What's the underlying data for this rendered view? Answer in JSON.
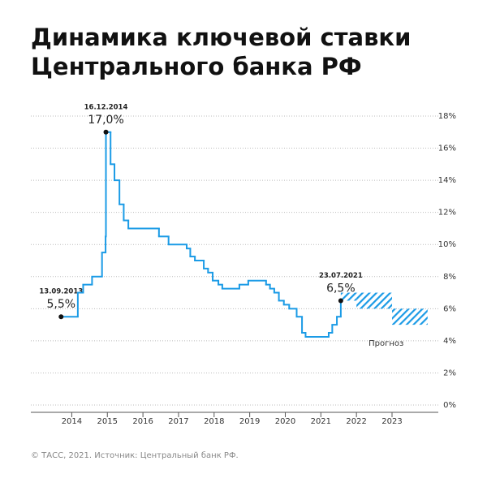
{
  "chart_data": {
    "type": "step",
    "title": [
      "Динамика ключевой ставки",
      "Центрального банка РФ"
    ],
    "source": "© ТАСС, 2021. Источник: Центральный банк РФ.",
    "x": [
      2013.7,
      2014.17,
      2014.32,
      2014.57,
      2014.85,
      2014.95,
      2014.96,
      2015.09,
      2015.2,
      2015.34,
      2015.46,
      2015.59,
      2016.45,
      2016.72,
      2017.23,
      2017.33,
      2017.46,
      2017.71,
      2017.83,
      2017.96,
      2018.12,
      2018.23,
      2018.71,
      2018.96,
      2019.46,
      2019.57,
      2019.69,
      2019.82,
      2019.96,
      2020.11,
      2020.32,
      2020.47,
      2020.57,
      2021.22,
      2021.32,
      2021.45,
      2021.56
    ],
    "series": [
      {
        "color": "#1b9be6",
        "values": [
          5.5,
          7,
          7.5,
          8,
          9.5,
          10.5,
          17,
          15,
          14,
          12.5,
          11.5,
          11,
          10.5,
          10,
          9.75,
          9.25,
          9,
          8.5,
          8.25,
          7.75,
          7.5,
          7.25,
          7.5,
          7.75,
          7.5,
          7.25,
          7,
          6.5,
          6.25,
          6,
          5.5,
          4.5,
          4.25,
          4.5,
          5,
          5.5,
          6.5
        ],
        "value_labels": [
          "5,5%",
          null,
          null,
          null,
          null,
          null,
          "17,0%",
          null,
          null,
          null,
          null,
          null,
          null,
          null,
          null,
          null,
          null,
          null,
          null,
          null,
          null,
          null,
          null,
          null,
          null,
          null,
          null,
          null,
          null,
          null,
          null,
          null,
          null,
          null,
          null,
          null,
          "6,5%"
        ],
        "date_labels": [
          "13.09.2013",
          null,
          null,
          null,
          null,
          null,
          "16.12.2014",
          null,
          null,
          null,
          null,
          null,
          null,
          null,
          null,
          null,
          null,
          null,
          null,
          null,
          null,
          null,
          null,
          null,
          null,
          null,
          null,
          null,
          null,
          null,
          null,
          null,
          null,
          null,
          null,
          null,
          "23.07.2021"
        ]
      }
    ],
    "forecast_label": "Прогноз",
    "forecast": [
      {
        "x": [
          2021.56,
          2022
        ],
        "y": [
          6.5,
          7
        ]
      },
      {
        "x": [
          2022,
          2023
        ],
        "y": [
          6,
          7
        ]
      },
      {
        "x": [
          2023,
          2024
        ],
        "y": [
          5,
          6
        ]
      }
    ],
    "xlim": [
      2012.85,
      2024.3
    ],
    "xticks": [
      2014,
      2015,
      2016,
      2017,
      2018,
      2019,
      2020,
      2021,
      2022,
      2023
    ],
    "ylim": [
      0,
      18
    ],
    "yticks": [
      {
        "value": 0,
        "label": "0%"
      },
      {
        "value": 2,
        "label": "2%"
      },
      {
        "value": 4,
        "label": "4%"
      },
      {
        "value": 6,
        "label": "6%"
      },
      {
        "value": 8,
        "label": "8%"
      },
      {
        "value": 10,
        "label": "10%"
      },
      {
        "value": 12,
        "label": "12%"
      },
      {
        "value": 14,
        "label": "14%"
      },
      {
        "value": 16,
        "label": "16%"
      },
      {
        "value": 18,
        "label": "18%"
      }
    ],
    "grid": true
  }
}
